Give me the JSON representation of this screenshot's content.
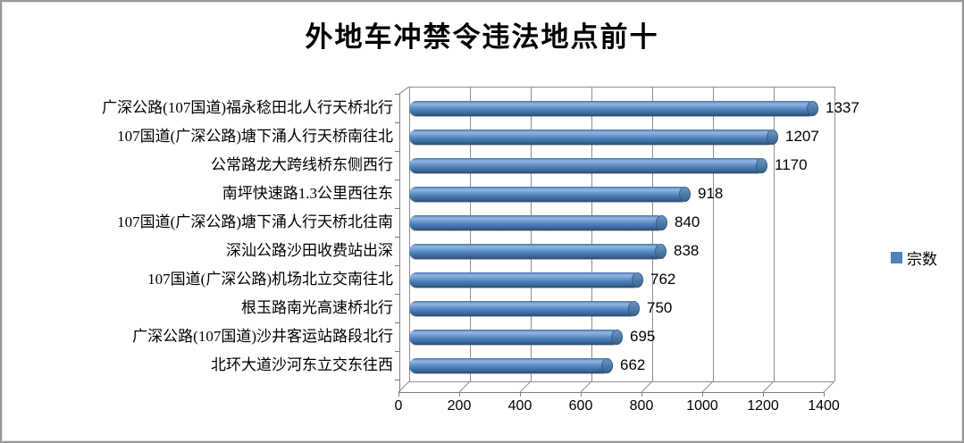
{
  "chart_data": {
    "type": "bar",
    "orientation": "horizontal",
    "style": "3d-cylinder",
    "title": "外地车冲禁令违法地点前十",
    "series": [
      {
        "name": "宗数",
        "values": [
          1337,
          1207,
          1170,
          918,
          840,
          838,
          762,
          750,
          695,
          662
        ]
      }
    ],
    "categories": [
      "广深公路(107国道)福永稔田北人行天桥北行",
      "107国道(广深公路)塘下涌人行天桥南往北",
      "公常路龙大跨线桥东侧西行",
      "南坪快速路1.3公里西往东",
      "107国道(广深公路)塘下涌人行天桥北往南",
      "深汕公路沙田收费站出深",
      "107国道(广深公路)机场北立交南往北",
      "根玉路南光高速桥北行",
      "广深公路(107国道)沙井客运站路段北行",
      "北环大道沙河东立交东往西"
    ],
    "values": [
      1337,
      1207,
      1170,
      918,
      840,
      838,
      762,
      750,
      695,
      662
    ],
    "value_labels_shown": true,
    "x_ticks": [
      0,
      200,
      400,
      600,
      800,
      1000,
      1200,
      1400
    ],
    "xlim": [
      0,
      1400
    ],
    "grid": "vertical",
    "legend_position": "right",
    "bar_color": "#4F81BD",
    "gridline_color": "#8f8f8f",
    "axis_color": "#7f7f7f"
  }
}
